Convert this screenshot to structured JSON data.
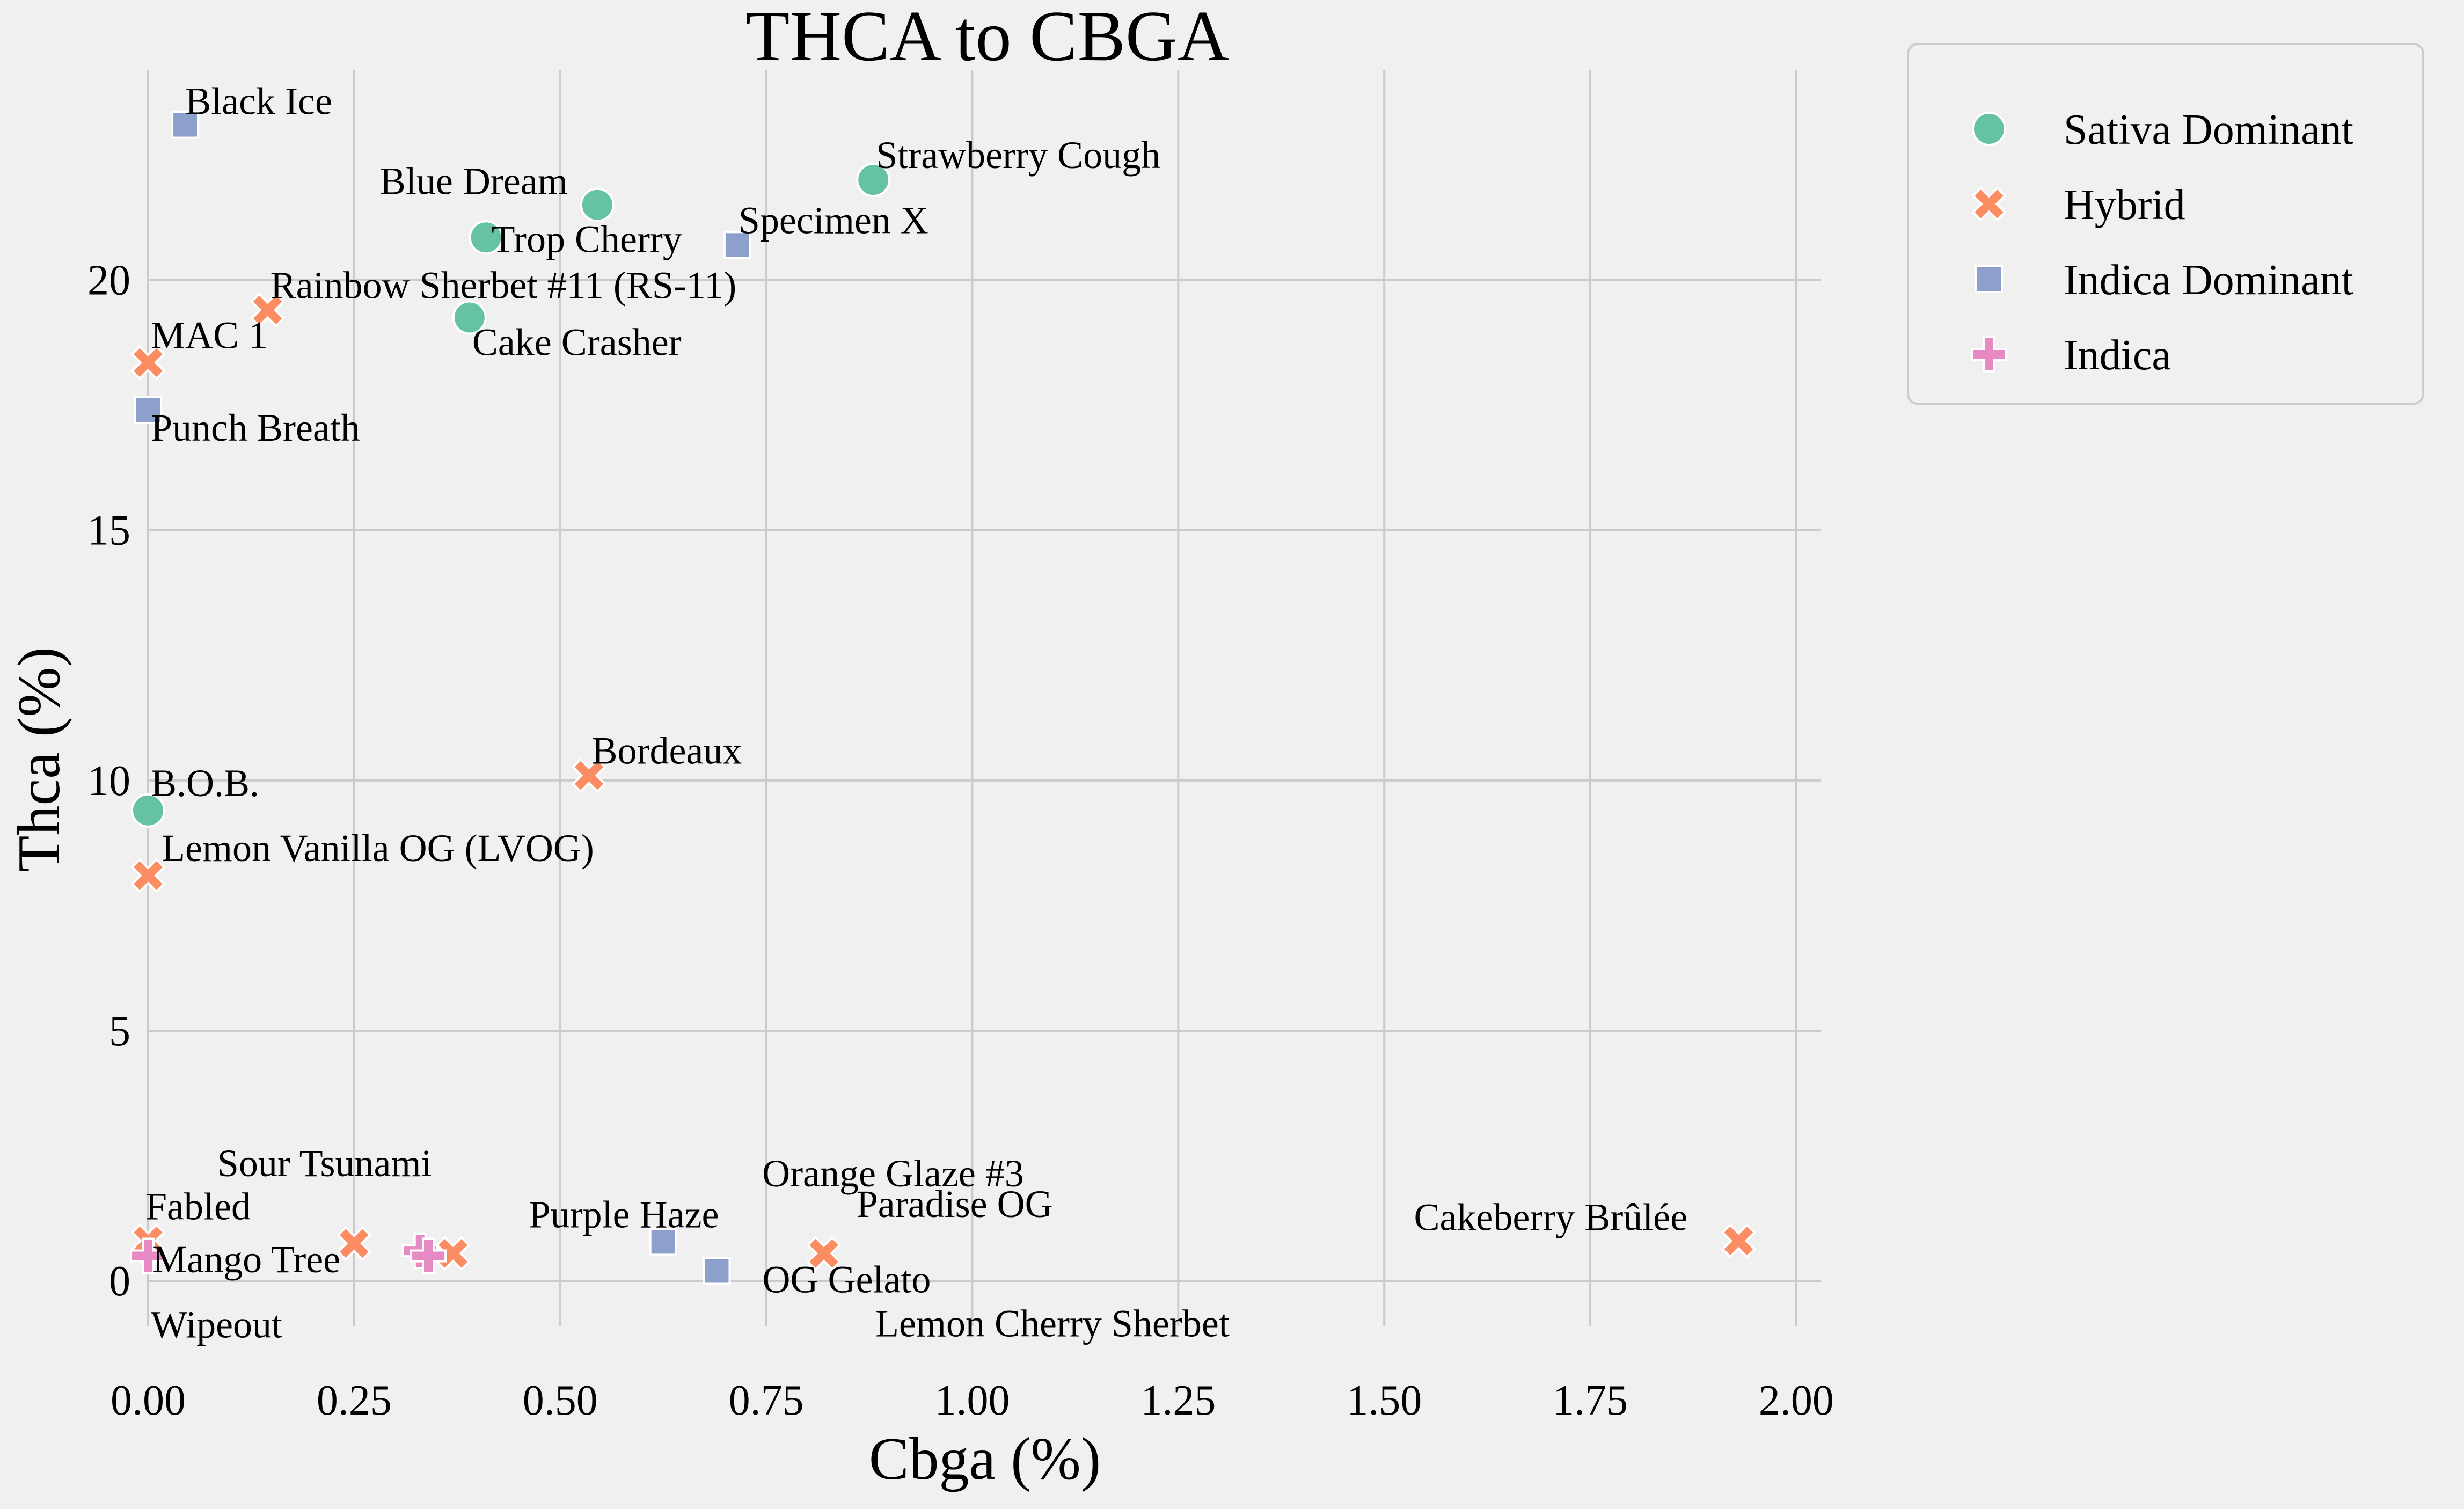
{
  "chart_data": {
    "type": "scatter",
    "title": "THCA to CBGA",
    "xlabel": "Cbga (%)",
    "ylabel": "Thca (%)",
    "xlim": [
      0.0,
      2.03
    ],
    "ylim": [
      -0.9,
      24.2
    ],
    "xticks": [
      0.0,
      0.25,
      0.5,
      0.75,
      1.0,
      1.25,
      1.5,
      1.75,
      2.0
    ],
    "xtick_labels": [
      "0.00",
      "0.25",
      "0.50",
      "0.75",
      "1.00",
      "1.25",
      "1.50",
      "1.75",
      "2.00"
    ],
    "yticks": [
      0,
      5,
      10,
      15,
      20
    ],
    "ytick_labels": [
      "0",
      "5",
      "10",
      "15",
      "20"
    ],
    "grid": true,
    "legend_position": "outside-top-right",
    "series": [
      {
        "name": "Sativa Dominant",
        "marker": "circle",
        "color": "#66c2a5",
        "points": [
          {
            "label": "Blue Dream",
            "x": 0.545,
            "y": 21.5
          },
          {
            "label": "Trop Cherry",
            "x": 0.41,
            "y": 20.85
          },
          {
            "label": "Cake Crasher",
            "x": 0.39,
            "y": 19.25
          },
          {
            "label": "Strawberry Cough",
            "x": 0.88,
            "y": 22.0
          },
          {
            "label": "B.O.B.",
            "x": 0.0,
            "y": 9.4
          }
        ]
      },
      {
        "name": "Hybrid",
        "marker": "x",
        "color": "#fc8d62",
        "points": [
          {
            "label": "Rainbow Sherbet #11 (RS-11)",
            "x": 0.145,
            "y": 19.4
          },
          {
            "label": "MAC 1",
            "x": 0.0,
            "y": 18.35
          },
          {
            "label": "Bordeaux",
            "x": 0.535,
            "y": 10.1
          },
          {
            "label": "Lemon Vanilla OG (LVOG)",
            "x": 0.0,
            "y": 8.1
          },
          {
            "label": "Sour Tsunami",
            "x": 0.25,
            "y": 0.75
          },
          {
            "label": "Mango Tree",
            "x": 0.37,
            "y": 0.55
          },
          {
            "label": "Orange Glaze #3",
            "x": 0.82,
            "y": 0.55
          },
          {
            "label": "Cakeberry Brûlée",
            "x": 1.93,
            "y": 0.8
          },
          {
            "label": "Fabled",
            "x": 0.0,
            "y": 0.8
          }
        ]
      },
      {
        "name": "Indica Dominant",
        "marker": "square",
        "color": "#8da0cb",
        "points": [
          {
            "label": "Black Ice",
            "x": 0.045,
            "y": 23.1
          },
          {
            "label": "Specimen X",
            "x": 0.715,
            "y": 20.7
          },
          {
            "label": "Punch Breath",
            "x": 0.0,
            "y": 17.4
          },
          {
            "label": "Purple Haze",
            "x": 0.625,
            "y": 0.78
          },
          {
            "label": "OG Gelato",
            "x": 0.69,
            "y": 0.2
          }
        ]
      },
      {
        "name": "Indica",
        "marker": "plus",
        "color": "#e78ac3",
        "points": [
          {
            "label": "Paradise OG",
            "x": 0.33,
            "y": 0.6
          },
          {
            "label": "Lemon Cherry Sherbet",
            "x": 0.34,
            "y": 0.5
          },
          {
            "label": "Wipeout",
            "x": 0.0,
            "y": 0.5
          }
        ]
      }
    ]
  }
}
